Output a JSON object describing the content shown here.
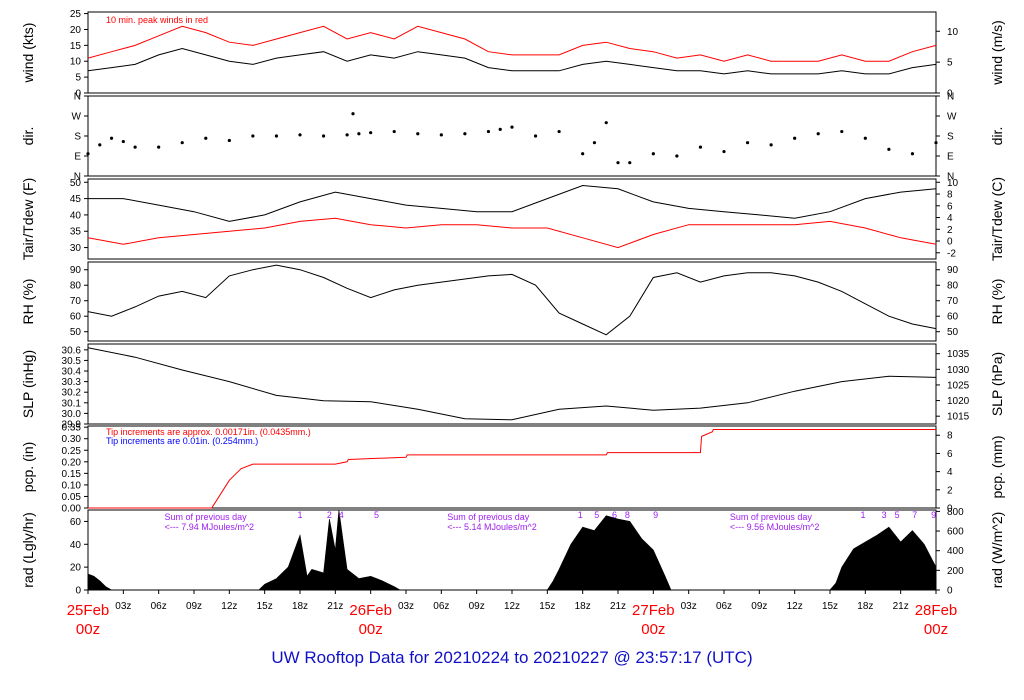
{
  "title": "UW Rooftop Data for 20210224  to  20210227 @ 23:57:17  (UTC)",
  "colors": {
    "black": "#000000",
    "red": "#ff0000",
    "blue": "#0000ff",
    "purple": "#a020f0",
    "title": "#1010c8"
  },
  "chart_data": {
    "type": "line",
    "x_ticks": [
      "03z",
      "06z",
      "09z",
      "12z",
      "15z",
      "18z",
      "21z",
      "03z",
      "06z",
      "09z",
      "12z",
      "15z",
      "18z",
      "21z",
      "03z",
      "06z",
      "09z",
      "12z",
      "15z",
      "18z",
      "21z"
    ],
    "day_labels": [
      {
        "date": "25Feb",
        "hour": "00z"
      },
      {
        "date": "26Feb",
        "hour": "00z"
      },
      {
        "date": "27Feb",
        "hour": "00z"
      },
      {
        "date": "28Feb",
        "hour": "00z"
      }
    ],
    "x_range_hours": [
      0,
      72
    ],
    "panels": [
      {
        "id": "wind",
        "ylabel_left": "wind (kts)",
        "ylabel_right": "wind (m/s)",
        "left_ticks": [
          "0",
          "5",
          "10",
          "15",
          "20",
          "25"
        ],
        "left_range": [
          0,
          25.5
        ],
        "right_ticks": [
          "0",
          "5",
          "10"
        ],
        "right_range": [
          0,
          13.12
        ],
        "annotation": "10 min. peak winds in red",
        "series": [
          {
            "color": "black",
            "x": [
              0,
              2,
              4,
              6,
              8,
              10,
              12,
              14,
              16,
              18,
              20,
              22,
              24,
              26,
              28,
              30,
              32,
              34,
              36,
              38,
              40,
              42,
              44,
              46,
              48,
              50,
              52,
              54,
              56,
              58,
              60,
              62,
              64,
              66,
              68,
              70,
              72
            ],
            "y": [
              7,
              8,
              9,
              12,
              14,
              12,
              10,
              9,
              11,
              12,
              13,
              10,
              12,
              11,
              13,
              12,
              11,
              8,
              7,
              7,
              7,
              9,
              10,
              9,
              8,
              7,
              7,
              6,
              7,
              6,
              6,
              6,
              7,
              6,
              6,
              8,
              9
            ]
          },
          {
            "color": "red",
            "x": [
              0,
              2,
              4,
              6,
              8,
              10,
              12,
              14,
              16,
              18,
              20,
              22,
              24,
              26,
              28,
              30,
              32,
              34,
              36,
              38,
              40,
              42,
              44,
              46,
              48,
              50,
              52,
              54,
              56,
              58,
              60,
              62,
              64,
              66,
              68,
              70,
              72
            ],
            "y": [
              11,
              13,
              15,
              18,
              21,
              19,
              16,
              15,
              17,
              19,
              21,
              17,
              19,
              17,
              21,
              19,
              17,
              13,
              12,
              12,
              12,
              15,
              16,
              14,
              13,
              11,
              12,
              10,
              12,
              10,
              10,
              10,
              12,
              10,
              10,
              13,
              15
            ]
          }
        ]
      },
      {
        "id": "dir",
        "ylabel_left": "dir.",
        "ylabel_right": "dir.",
        "left_ticks": [
          "N",
          "E",
          "S",
          "W",
          "N"
        ],
        "left_range": [
          0,
          360
        ],
        "right_ticks": [
          "N",
          "E",
          "S",
          "W",
          "N"
        ],
        "series": [
          {
            "color": "black",
            "x": [
              0,
              1,
              2,
              3,
              4,
              6,
              8,
              10,
              12,
              14,
              16,
              18,
              20,
              22,
              22.5,
              23,
              24,
              26,
              28,
              30,
              32,
              34,
              35,
              36,
              38,
              40,
              42,
              43,
              44,
              45,
              46,
              48,
              50,
              52,
              54,
              56,
              58,
              60,
              62,
              64,
              66,
              68,
              70,
              72
            ],
            "y": [
              100,
              140,
              170,
              155,
              130,
              130,
              150,
              170,
              160,
              180,
              180,
              185,
              180,
              185,
              280,
              190,
              195,
              200,
              190,
              185,
              190,
              200,
              210,
              220,
              180,
              200,
              100,
              150,
              240,
              60,
              60,
              100,
              90,
              130,
              110,
              150,
              140,
              170,
              190,
              200,
              170,
              120,
              100,
              150
            ]
          }
        ]
      },
      {
        "id": "temp",
        "ylabel_left": "Tair/Tdew (F)",
        "ylabel_right": "Tair/Tdew (C)",
        "left_ticks": [
          "30",
          "35",
          "40",
          "45",
          "50"
        ],
        "left_range": [
          26.5,
          51
        ],
        "right_ticks": [
          "-2",
          "0",
          "2",
          "4",
          "6",
          "8",
          "10"
        ],
        "right_range": [
          -3.06,
          10.56
        ],
        "series": [
          {
            "color": "black",
            "x": [
              0,
              3,
              6,
              9,
              12,
              15,
              18,
              21,
              24,
              27,
              30,
              33,
              36,
              39,
              42,
              45,
              48,
              51,
              54,
              57,
              60,
              63,
              66,
              69,
              72
            ],
            "y": [
              45,
              45,
              43,
              41,
              38,
              40,
              44,
              47,
              45,
              43,
              42,
              41,
              41,
              45,
              49,
              48,
              44,
              42,
              41,
              40,
              39,
              41,
              45,
              47,
              48
            ]
          },
          {
            "color": "red",
            "x": [
              0,
              3,
              6,
              9,
              12,
              15,
              18,
              21,
              24,
              27,
              30,
              33,
              36,
              39,
              42,
              45,
              48,
              51,
              54,
              57,
              60,
              63,
              66,
              69,
              72
            ],
            "y": [
              33,
              31,
              33,
              34,
              35,
              36,
              38,
              39,
              37,
              36,
              37,
              37,
              36,
              36,
              33,
              30,
              34,
              37,
              37,
              37,
              37,
              38,
              36,
              33,
              31
            ]
          }
        ]
      },
      {
        "id": "rh",
        "ylabel_left": "RH (%)",
        "ylabel_right": "RH (%)",
        "left_ticks": [
          "50",
          "60",
          "70",
          "80",
          "90"
        ],
        "left_range": [
          44,
          95
        ],
        "right_ticks": [
          "50",
          "60",
          "70",
          "80",
          "90"
        ],
        "series": [
          {
            "color": "black",
            "x": [
              0,
              2,
              4,
              6,
              8,
              10,
              12,
              14,
              16,
              18,
              20,
              22,
              24,
              26,
              28,
              30,
              32,
              34,
              36,
              38,
              40,
              42,
              44,
              46,
              48,
              50,
              52,
              54,
              56,
              58,
              60,
              62,
              64,
              66,
              68,
              70,
              72
            ],
            "y": [
              63,
              60,
              66,
              73,
              76,
              72,
              86,
              90,
              93,
              90,
              85,
              78,
              72,
              77,
              80,
              82,
              84,
              86,
              87,
              80,
              62,
              55,
              48,
              60,
              85,
              88,
              82,
              86,
              88,
              88,
              86,
              82,
              76,
              68,
              60,
              55,
              52
            ]
          }
        ]
      },
      {
        "id": "slp",
        "ylabel_left": "SLP (inHg)",
        "ylabel_right": "SLP (hPa)",
        "left_ticks": [
          "29.9",
          "30.0",
          "30.1",
          "30.2",
          "30.3",
          "30.4",
          "30.5",
          "30.6"
        ],
        "left_range": [
          29.9,
          30.655
        ],
        "right_ticks": [
          "1015",
          "1020",
          "1025",
          "1030",
          "1035"
        ],
        "right_range": [
          1012.5,
          1038.1
        ],
        "series": [
          {
            "color": "black",
            "x": [
              0,
              4,
              8,
              12,
              16,
              20,
              24,
              28,
              32,
              36,
              40,
              44,
              48,
              52,
              56,
              60,
              64,
              68,
              72
            ],
            "y": [
              30.62,
              30.53,
              30.41,
              30.3,
              30.17,
              30.12,
              30.11,
              30.04,
              29.95,
              29.94,
              30.04,
              30.07,
              30.03,
              30.05,
              30.1,
              30.21,
              30.3,
              30.35,
              30.34
            ]
          }
        ]
      },
      {
        "id": "pcp",
        "ylabel_left": "pcp. (in)",
        "ylabel_right": "pcp. (mm)",
        "left_ticks": [
          "0.00",
          "0.05",
          "0.10",
          "0.15",
          "0.20",
          "0.25",
          "0.30",
          "0.35"
        ],
        "left_range": [
          0,
          0.355
        ],
        "right_ticks": [
          "0",
          "2",
          "4",
          "6",
          "8"
        ],
        "right_range": [
          0,
          9.017
        ],
        "notes": [
          {
            "text": "Tip increments are approx. 0.00171in. (0.0435mm.)",
            "color": "red"
          },
          {
            "text": "Tip increments are 0.01in. (0.254mm.)",
            "color": "blue"
          }
        ],
        "series": [
          {
            "color": "red",
            "x": [
              0,
              10.5,
              11,
              12,
              13,
              14,
              21,
              22,
              22.1,
              27,
              27.1,
              44,
              44.1,
              52,
              52.1,
              53,
              53.1,
              72
            ],
            "y": [
              0,
              0,
              0.04,
              0.12,
              0.17,
              0.19,
              0.19,
              0.2,
              0.21,
              0.22,
              0.23,
              0.23,
              0.24,
              0.24,
              0.31,
              0.33,
              0.34,
              0.34
            ]
          }
        ]
      },
      {
        "id": "rad",
        "ylabel_left": "rad (Lgly/hr)",
        "ylabel_right": "rad (W/m^2)",
        "left_ticks": [
          "0",
          "20",
          "40",
          "60"
        ],
        "left_range": [
          0,
          70
        ],
        "right_ticks": [
          "0",
          "200",
          "400",
          "600",
          "800"
        ],
        "right_range": [
          0,
          814
        ],
        "annotations": [
          {
            "hours": 6.5,
            "line1": "Sum of previous day",
            "line2": "<--- 7.94 MJoules/m^2"
          },
          {
            "hours": 30.5,
            "line1": "Sum of previous day",
            "line2": "<--- 5.14 MJoules/m^2"
          },
          {
            "hours": 54.5,
            "line1": "Sum of previous day",
            "line2": "<--- 9.56 MJoules/m^2"
          }
        ],
        "markers": [
          {
            "hours": 18,
            "label": "1"
          },
          {
            "hours": 20.5,
            "label": "2"
          },
          {
            "hours": 21.5,
            "label": "4"
          },
          {
            "hours": 24.5,
            "label": "5"
          },
          {
            "hours": 41.8,
            "label": "1"
          },
          {
            "hours": 43.2,
            "label": "5"
          },
          {
            "hours": 44.7,
            "label": "6"
          },
          {
            "hours": 45.8,
            "label": "8"
          },
          {
            "hours": 48.2,
            "label": "9"
          },
          {
            "hours": 65.8,
            "label": "1"
          },
          {
            "hours": 67.6,
            "label": "3"
          },
          {
            "hours": 68.7,
            "label": "5"
          },
          {
            "hours": 70.2,
            "label": "7"
          },
          {
            "hours": 71.8,
            "label": "9"
          }
        ],
        "series": [
          {
            "color": "black",
            "fill": true,
            "x": [
              0,
              0.5,
              1,
              1.5,
              2,
              14.5,
              15,
              16,
              17,
              18,
              18.6,
              19,
              20,
              20.5,
              21,
              21.3,
              21.7,
              22,
              23,
              24,
              25,
              26,
              26.5,
              39,
              39.5,
              40,
              41,
              42,
              43,
              44,
              45,
              46,
              47,
              48,
              49,
              49.5,
              63,
              63.5,
              64,
              65,
              66,
              67,
              68,
              69,
              70,
              71,
              72
            ],
            "y": [
              14,
              12,
              8,
              3,
              0,
              0,
              5,
              10,
              20,
              48,
              12,
              18,
              15,
              62,
              35,
              72,
              40,
              18,
              10,
              12,
              8,
              3,
              0,
              0,
              8,
              18,
              40,
              55,
              52,
              65,
              62,
              60,
              45,
              35,
              12,
              0,
              0,
              6,
              20,
              36,
              42,
              48,
              55,
              42,
              52,
              40,
              20
            ]
          }
        ]
      }
    ]
  }
}
